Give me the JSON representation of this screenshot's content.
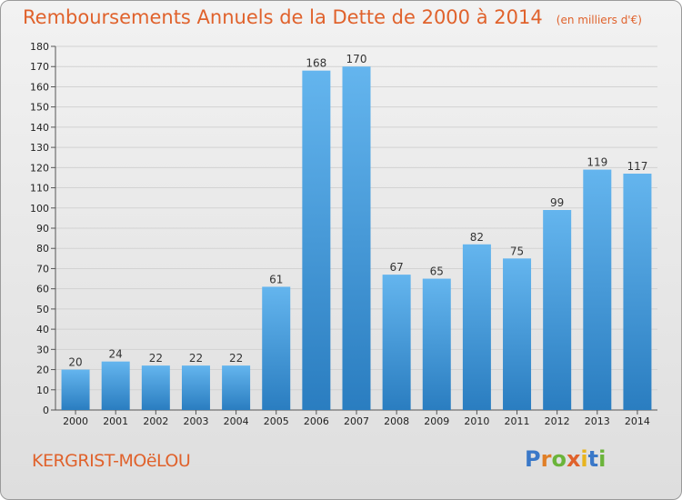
{
  "title": {
    "main": "Remboursements Annuels de la Dette de 2000 à 2014",
    "unit": "(en milliers d'€)"
  },
  "commune": "KERGRIST-MOëLOU",
  "logo": {
    "letters": [
      "P",
      "r",
      "o",
      "x",
      "i",
      "t",
      "i"
    ],
    "colors": [
      "#3a78c8",
      "#e07f27",
      "#6bb43a",
      "#e0622c",
      "#e8b41e",
      "#3a78c8",
      "#6bb43a"
    ]
  },
  "colors": {
    "bar_light": "#64b5ee",
    "bar_dark": "#2a7dc0",
    "title": "#e0622c"
  },
  "chart_data": {
    "type": "bar",
    "categories": [
      "2000",
      "2001",
      "2002",
      "2003",
      "2004",
      "2005",
      "2006",
      "2007",
      "2008",
      "2009",
      "2010",
      "2011",
      "2012",
      "2013",
      "2014"
    ],
    "values": [
      20,
      24,
      22,
      22,
      22,
      61,
      168,
      170,
      67,
      65,
      82,
      75,
      99,
      119,
      117
    ],
    "title": "Remboursements Annuels de la Dette de 2000 à 2014",
    "xlabel": "",
    "ylabel": "",
    "ylim": [
      0,
      180
    ],
    "yticks": [
      0,
      10,
      20,
      30,
      40,
      50,
      60,
      70,
      80,
      90,
      100,
      110,
      120,
      130,
      140,
      150,
      160,
      170,
      180
    ],
    "grid": true,
    "data_labels": true
  }
}
